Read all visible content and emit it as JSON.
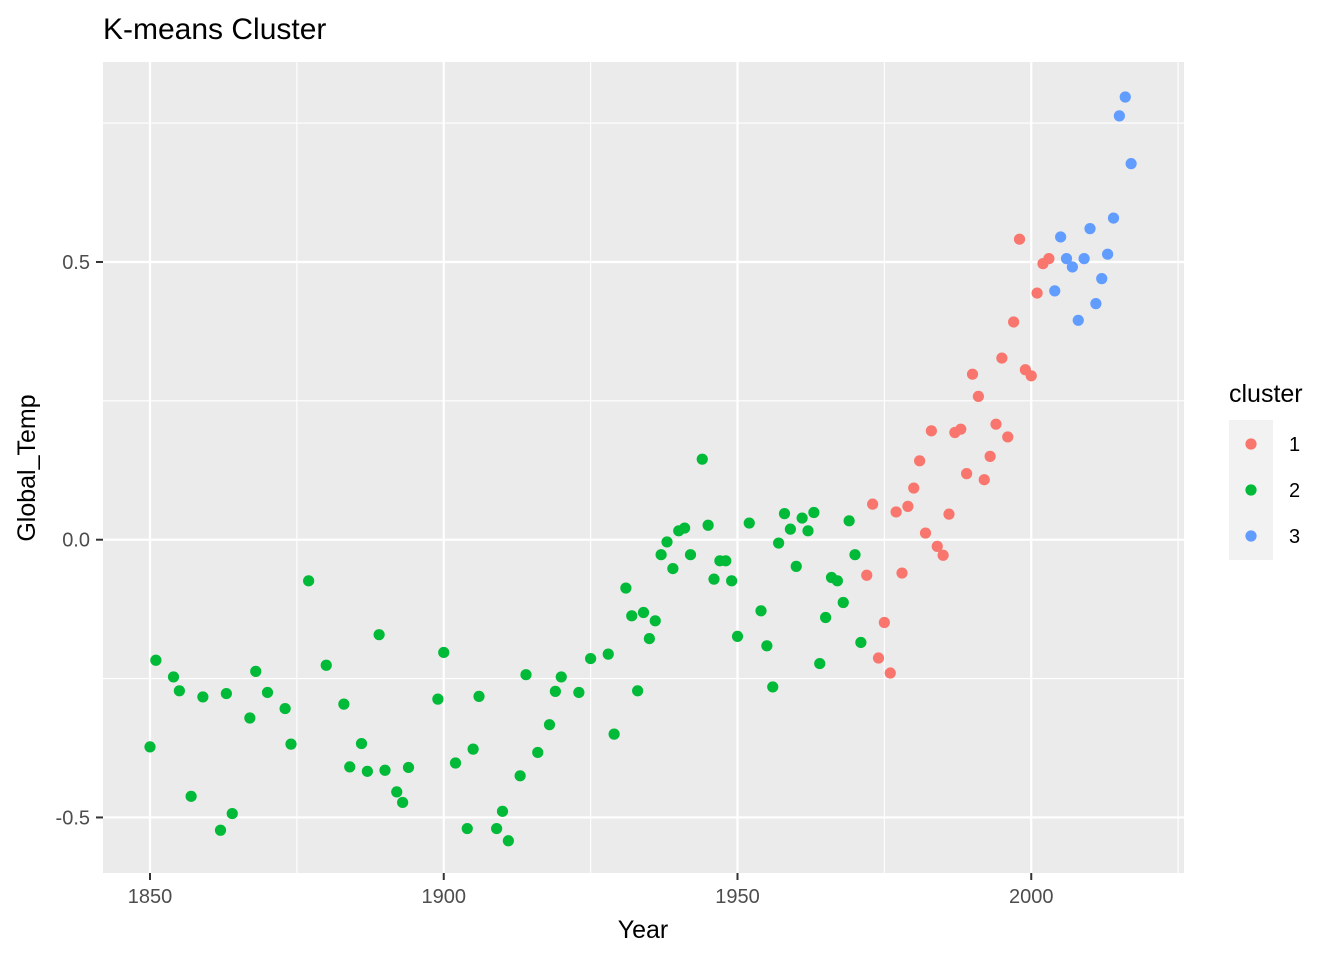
{
  "chart_data": {
    "type": "scatter",
    "title": "K-means Cluster",
    "xlabel": "Year",
    "ylabel": "Global_Temp",
    "xlim": [
      1842,
      2026
    ],
    "ylim": [
      -0.6,
      0.86
    ],
    "x_ticks": [
      {
        "value": 1850,
        "label": "1850"
      },
      {
        "value": 1900,
        "label": "1900"
      },
      {
        "value": 1950,
        "label": "1950"
      },
      {
        "value": 2000,
        "label": "2000"
      }
    ],
    "y_ticks": [
      {
        "value": 0.5,
        "label": "0.5"
      },
      {
        "value": 0.0,
        "label": "0.0"
      },
      {
        "value": -0.5,
        "label": "-0.5"
      }
    ],
    "grid": true,
    "legend": {
      "title": "cluster",
      "position": "right",
      "entries": [
        {
          "label": "1",
          "color": "#F8766D"
        },
        {
          "label": "2",
          "color": "#00BA38"
        },
        {
          "label": "3",
          "color": "#619CFF"
        }
      ]
    },
    "series": [
      {
        "cluster": "1",
        "color": "#F8766D",
        "x": [
          1972,
          1973,
          1974,
          1975,
          1976,
          1977,
          1978,
          1979,
          1980,
          1981,
          1982,
          1983,
          1984,
          1985,
          1986,
          1987,
          1988,
          1989,
          1990,
          1991,
          1992,
          1993,
          1994,
          1995,
          1996,
          1997,
          1998,
          1999,
          2000,
          2001,
          2002,
          2003
        ],
        "y": [
          -0.064,
          0.064,
          -0.213,
          -0.149,
          -0.24,
          0.05,
          -0.06,
          0.06,
          0.093,
          0.142,
          0.012,
          0.196,
          -0.012,
          -0.028,
          0.046,
          0.193,
          0.199,
          0.119,
          0.298,
          0.258,
          0.108,
          0.15,
          0.208,
          0.327,
          0.185,
          0.392,
          0.541,
          0.306,
          0.295,
          0.444,
          0.497,
          0.506
        ]
      },
      {
        "cluster": "2",
        "color": "#00BA38",
        "x": [
          1850,
          1851,
          1854,
          1855,
          1857,
          1859,
          1862,
          1863,
          1864,
          1867,
          1868,
          1870,
          1873,
          1874,
          1877,
          1880,
          1883,
          1884,
          1886,
          1887,
          1889,
          1890,
          1892,
          1893,
          1894,
          1899,
          1900,
          1902,
          1904,
          1905,
          1906,
          1909,
          1910,
          1911,
          1913,
          1914,
          1916,
          1918,
          1919,
          1920,
          1923,
          1925,
          1928,
          1929,
          1931,
          1932,
          1933,
          1934,
          1935,
          1936,
          1937,
          1938,
          1939,
          1940,
          1941,
          1942,
          1944,
          1945,
          1946,
          1947,
          1948,
          1949,
          1950,
          1952,
          1954,
          1955,
          1956,
          1957,
          1958,
          1959,
          1960,
          1961,
          1962,
          1963,
          1964,
          1965,
          1966,
          1967,
          1968,
          1969,
          1970,
          1971
        ],
        "y": [
          -0.373,
          -0.217,
          -0.247,
          -0.272,
          -0.462,
          -0.283,
          -0.523,
          -0.277,
          -0.493,
          -0.321,
          -0.237,
          -0.275,
          -0.304,
          -0.368,
          -0.074,
          -0.226,
          -0.296,
          -0.409,
          -0.367,
          -0.417,
          -0.171,
          -0.415,
          -0.454,
          -0.473,
          -0.41,
          -0.287,
          -0.203,
          -0.402,
          -0.52,
          -0.377,
          -0.282,
          -0.52,
          -0.489,
          -0.542,
          -0.425,
          -0.243,
          -0.383,
          -0.333,
          -0.273,
          -0.247,
          -0.275,
          -0.214,
          -0.206,
          -0.35,
          -0.087,
          -0.137,
          -0.272,
          -0.131,
          -0.178,
          -0.146,
          -0.027,
          -0.004,
          -0.052,
          0.016,
          0.021,
          -0.027,
          0.145,
          0.026,
          -0.071,
          -0.038,
          -0.038,
          -0.074,
          -0.174,
          0.03,
          -0.128,
          -0.191,
          -0.265,
          -0.006,
          0.047,
          0.019,
          -0.048,
          0.039,
          0.016,
          0.049,
          -0.223,
          -0.14,
          -0.068,
          -0.074,
          -0.113,
          0.034,
          -0.027,
          -0.185
        ]
      },
      {
        "cluster": "3",
        "color": "#619CFF",
        "x": [
          2004,
          2005,
          2006,
          2007,
          2008,
          2009,
          2010,
          2011,
          2012,
          2013,
          2014,
          2015,
          2016,
          2017
        ],
        "y": [
          0.448,
          0.545,
          0.506,
          0.491,
          0.395,
          0.506,
          0.56,
          0.425,
          0.47,
          0.514,
          0.579,
          0.763,
          0.797,
          0.677
        ]
      }
    ]
  }
}
